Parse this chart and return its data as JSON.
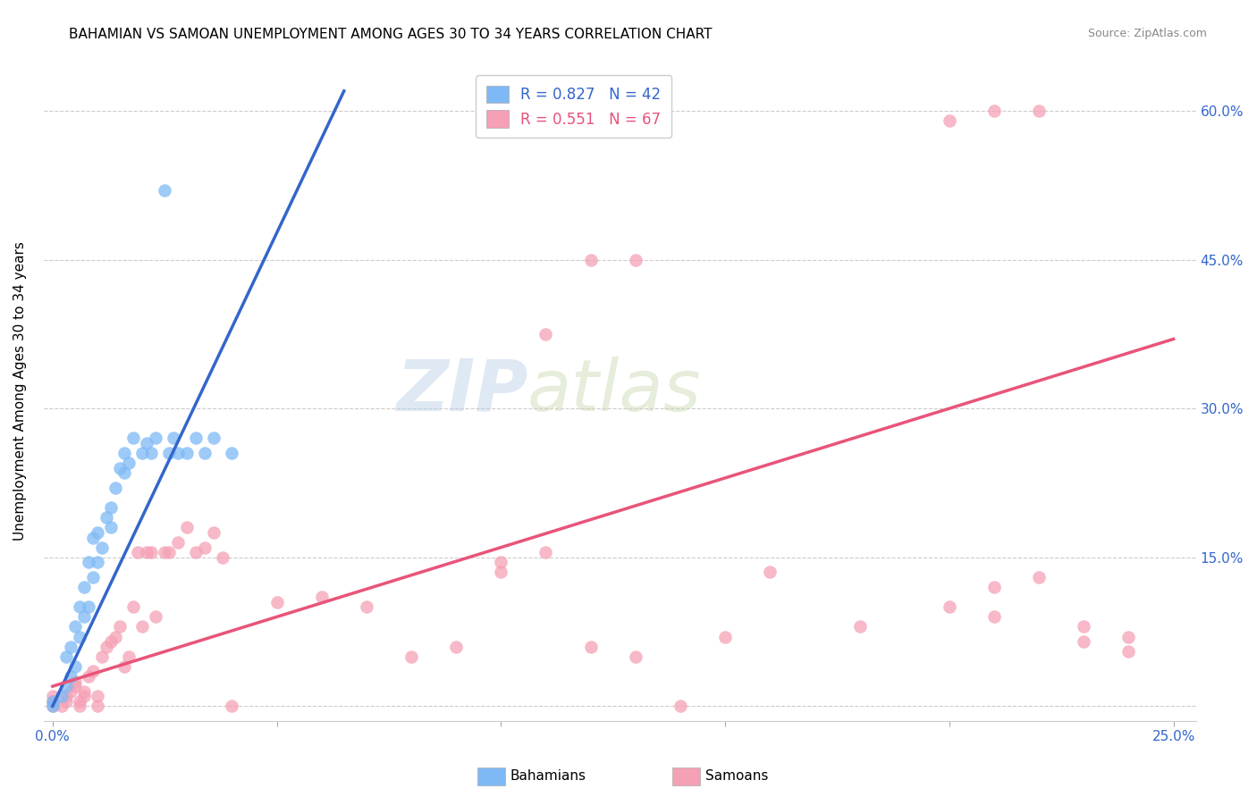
{
  "title": "BAHAMIAN VS SAMOAN UNEMPLOYMENT AMONG AGES 30 TO 34 YEARS CORRELATION CHART",
  "source": "Source: ZipAtlas.com",
  "ylabel": "Unemployment Among Ages 30 to 34 years",
  "bahamian_color": "#7EB9F5",
  "samoan_color": "#F5A0B5",
  "blue_line_color": "#3366CC",
  "pink_line_color": "#E8547A",
  "R_bahamian": 0.827,
  "N_bahamian": 42,
  "R_samoan": 0.551,
  "N_samoan": 67,
  "watermark_zip": "ZIP",
  "watermark_atlas": "atlas",
  "bahamians_x": [
    0.0,
    0.0,
    0.002,
    0.003,
    0.003,
    0.004,
    0.004,
    0.005,
    0.005,
    0.006,
    0.006,
    0.007,
    0.007,
    0.008,
    0.008,
    0.009,
    0.009,
    0.01,
    0.01,
    0.011,
    0.012,
    0.013,
    0.013,
    0.014,
    0.015,
    0.016,
    0.016,
    0.017,
    0.018,
    0.02,
    0.021,
    0.022,
    0.023,
    0.025,
    0.026,
    0.027,
    0.028,
    0.03,
    0.032,
    0.034,
    0.036,
    0.04
  ],
  "bahamians_y": [
    0.0,
    0.005,
    0.01,
    0.02,
    0.05,
    0.03,
    0.06,
    0.04,
    0.08,
    0.07,
    0.1,
    0.09,
    0.12,
    0.1,
    0.145,
    0.13,
    0.17,
    0.145,
    0.175,
    0.16,
    0.19,
    0.18,
    0.2,
    0.22,
    0.24,
    0.235,
    0.255,
    0.245,
    0.27,
    0.255,
    0.265,
    0.255,
    0.27,
    0.52,
    0.255,
    0.27,
    0.255,
    0.255,
    0.27,
    0.255,
    0.27,
    0.255
  ],
  "samoans_x": [
    0.0,
    0.0,
    0.0,
    0.002,
    0.003,
    0.003,
    0.004,
    0.005,
    0.005,
    0.006,
    0.006,
    0.007,
    0.007,
    0.008,
    0.009,
    0.01,
    0.01,
    0.011,
    0.012,
    0.013,
    0.014,
    0.015,
    0.016,
    0.017,
    0.018,
    0.019,
    0.02,
    0.021,
    0.022,
    0.023,
    0.025,
    0.026,
    0.028,
    0.03,
    0.032,
    0.034,
    0.036,
    0.038,
    0.04,
    0.05,
    0.06,
    0.07,
    0.08,
    0.09,
    0.1,
    0.11,
    0.12,
    0.13,
    0.14,
    0.15,
    0.16,
    0.18,
    0.2,
    0.21,
    0.22,
    0.23,
    0.24,
    0.2,
    0.21,
    0.22,
    0.21,
    0.23,
    0.24,
    0.1,
    0.11,
    0.12,
    0.13
  ],
  "samoans_y": [
    0.0,
    0.005,
    0.01,
    0.0,
    0.005,
    0.01,
    0.015,
    0.02,
    0.025,
    0.005,
    0.0,
    0.01,
    0.015,
    0.03,
    0.035,
    0.0,
    0.01,
    0.05,
    0.06,
    0.065,
    0.07,
    0.08,
    0.04,
    0.05,
    0.1,
    0.155,
    0.08,
    0.155,
    0.155,
    0.09,
    0.155,
    0.155,
    0.165,
    0.18,
    0.155,
    0.16,
    0.175,
    0.15,
    0.0,
    0.105,
    0.11,
    0.1,
    0.05,
    0.06,
    0.145,
    0.375,
    0.45,
    0.45,
    0.0,
    0.07,
    0.135,
    0.08,
    0.59,
    0.6,
    0.6,
    0.065,
    0.055,
    0.1,
    0.12,
    0.13,
    0.09,
    0.08,
    0.07,
    0.135,
    0.155,
    0.06,
    0.05
  ],
  "blue_line_x": [
    0.0,
    0.065
  ],
  "blue_line_y": [
    0.0,
    0.62
  ],
  "pink_line_x": [
    0.0,
    0.25
  ],
  "pink_line_y": [
    0.02,
    0.37
  ],
  "xlim": [
    -0.002,
    0.255
  ],
  "ylim": [
    -0.015,
    0.65
  ],
  "x_tick_positions": [
    0.0,
    0.05,
    0.1,
    0.15,
    0.2,
    0.25
  ],
  "x_tick_labels": [
    "0.0%",
    "",
    "",
    "",
    "",
    "25.0%"
  ],
  "y_tick_positions": [
    0.0,
    0.15,
    0.3,
    0.45,
    0.6
  ],
  "y_tick_labels_right": [
    "",
    "15.0%",
    "30.0%",
    "45.0%",
    "60.0%"
  ]
}
